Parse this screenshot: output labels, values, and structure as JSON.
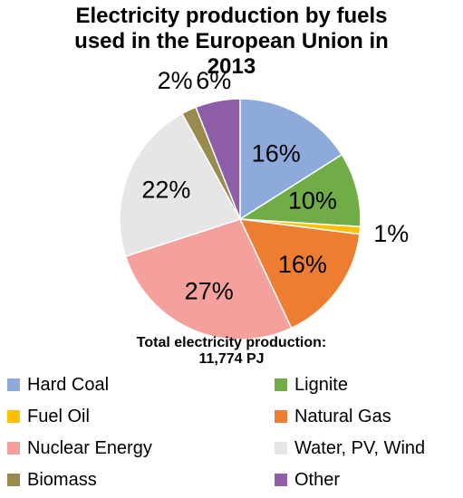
{
  "chart_data": {
    "type": "pie",
    "title_lines": [
      "Electricity production by fuels",
      "used in the European Union in",
      "2013"
    ],
    "subtitle_lines": [
      "Total electricity production:",
      "11,774 PJ"
    ],
    "slices": [
      {
        "name": "Hard Coal",
        "value": 16,
        "label": "16%",
        "color": "#8EAADB"
      },
      {
        "name": "Lignite",
        "value": 10,
        "label": "10%",
        "color": "#70AD47"
      },
      {
        "name": "Fuel Oil",
        "value": 1,
        "label": "1%",
        "color": "#FFC000"
      },
      {
        "name": "Natural Gas",
        "value": 16,
        "label": "16%",
        "color": "#ED7D31"
      },
      {
        "name": "Nuclear Energy",
        "value": 27,
        "label": "27%",
        "color": "#F4A09C"
      },
      {
        "name": "Water, PV, Wind",
        "value": 22,
        "label": "22%",
        "color": "#E7E6E6"
      },
      {
        "name": "Biomass",
        "value": 2,
        "label": "2%",
        "color": "#998B4E"
      },
      {
        "name": "Other",
        "value": 6,
        "label": "6%",
        "color": "#8E5FA8"
      }
    ],
    "legend_position": "bottom",
    "start_angle": "12 o'clock",
    "direction": "clockwise"
  }
}
